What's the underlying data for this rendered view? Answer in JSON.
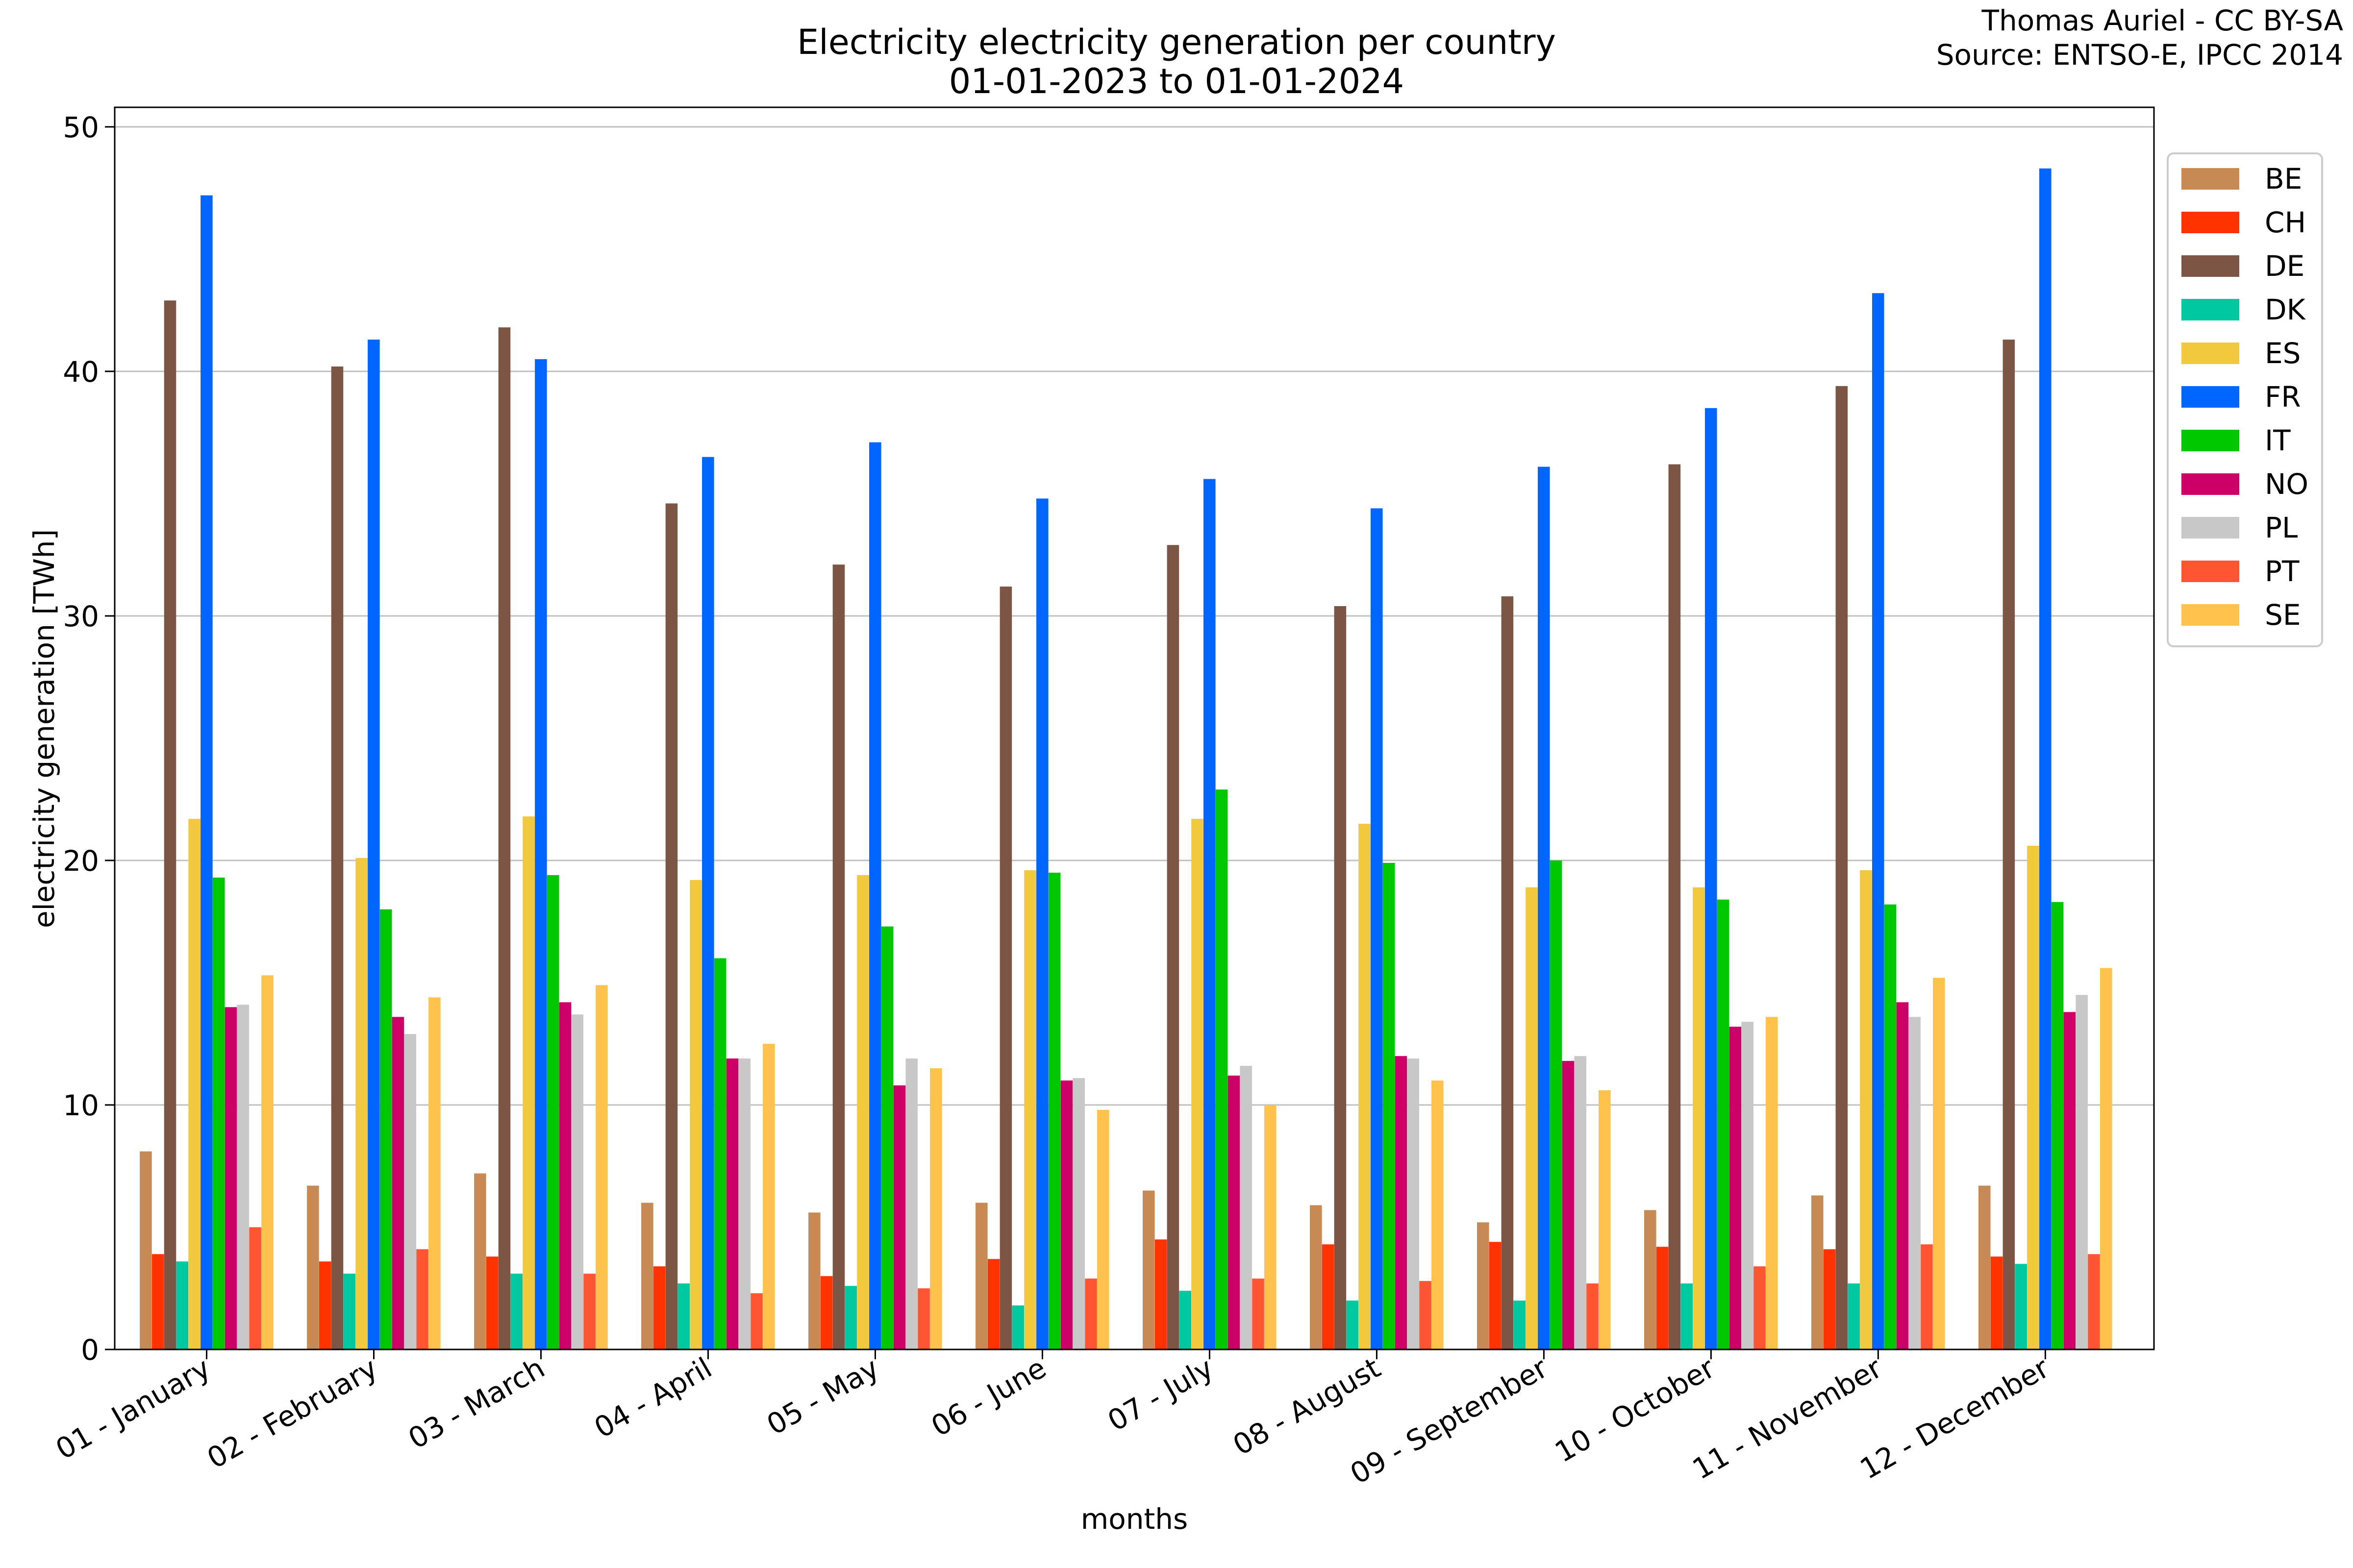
{
  "chart_data": {
    "type": "bar",
    "title": "Electricity electricity generation per country",
    "subtitle": "01-01-2023 to 01-01-2024",
    "credit_lines": [
      "Thomas Auriel - CC BY-SA",
      "Source: ENTSO-E, IPCC 2014"
    ],
    "xlabel": "months",
    "ylabel": "electricity generation [TWh]",
    "ylim": [
      0,
      50.8
    ],
    "yticks": [
      0,
      10,
      20,
      30,
      40,
      50
    ],
    "grid": "horizontal",
    "legend": "top-right, outside plot area",
    "categories": [
      "01 - January",
      "02 - February",
      "03 - March",
      "04 - April",
      "05 - May",
      "06 - June",
      "07 - July",
      "08 - August",
      "09 - September",
      "10 - October",
      "11 - November",
      "12 - December"
    ],
    "series": [
      {
        "name": "BE",
        "color": "#C88A54",
        "values": [
          8.1,
          6.7,
          7.2,
          6.0,
          5.6,
          6.0,
          6.5,
          5.9,
          5.2,
          5.7,
          6.3,
          6.7
        ]
      },
      {
        "name": "CH",
        "color": "#FF3300",
        "values": [
          3.9,
          3.6,
          3.8,
          3.4,
          3.0,
          3.7,
          4.5,
          4.3,
          4.4,
          4.2,
          4.1,
          3.8
        ]
      },
      {
        "name": "DE",
        "color": "#7D5545",
        "values": [
          42.9,
          40.2,
          41.8,
          34.6,
          32.1,
          31.2,
          32.9,
          30.4,
          30.8,
          36.2,
          39.4,
          41.3
        ]
      },
      {
        "name": "DK",
        "color": "#00C8A0",
        "values": [
          3.6,
          3.1,
          3.1,
          2.7,
          2.6,
          1.8,
          2.4,
          2.0,
          2.0,
          2.7,
          2.7,
          3.5
        ]
      },
      {
        "name": "ES",
        "color": "#F2C83C",
        "values": [
          21.7,
          20.1,
          21.8,
          19.2,
          19.4,
          19.6,
          21.7,
          21.5,
          18.9,
          18.9,
          19.6,
          20.6
        ]
      },
      {
        "name": "FR",
        "color": "#0066FF",
        "values": [
          47.2,
          41.3,
          40.5,
          36.5,
          37.1,
          34.8,
          35.6,
          34.4,
          36.1,
          38.5,
          43.2,
          48.3
        ]
      },
      {
        "name": "IT",
        "color": "#00C800",
        "values": [
          19.3,
          18.0,
          19.4,
          16.0,
          17.3,
          19.5,
          22.9,
          19.9,
          20.0,
          18.4,
          18.2,
          18.3
        ]
      },
      {
        "name": "NO",
        "color": "#CC0066",
        "values": [
          14.0,
          13.6,
          14.2,
          11.9,
          10.8,
          11.0,
          11.2,
          12.0,
          11.8,
          13.2,
          14.2,
          13.8
        ]
      },
      {
        "name": "PL",
        "color": "#C8C8C8",
        "values": [
          14.1,
          12.9,
          13.7,
          11.9,
          11.9,
          11.1,
          11.6,
          11.9,
          12.0,
          13.4,
          13.6,
          14.5
        ]
      },
      {
        "name": "PT",
        "color": "#FF5533",
        "values": [
          5.0,
          4.1,
          3.1,
          2.3,
          2.5,
          2.9,
          2.9,
          2.8,
          2.7,
          3.4,
          4.3,
          3.9
        ]
      },
      {
        "name": "SE",
        "color": "#FFC34D",
        "values": [
          15.3,
          14.4,
          14.9,
          12.5,
          11.5,
          9.8,
          10.0,
          11.0,
          10.6,
          13.6,
          15.2,
          15.6
        ]
      }
    ]
  }
}
